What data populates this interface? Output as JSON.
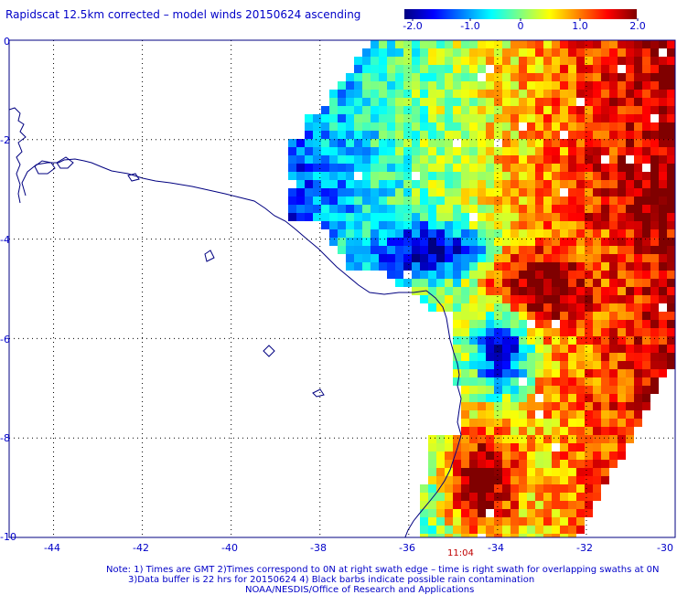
{
  "title": "Rapidscat 12.5km corrected – model winds 20150624 ascending",
  "colorbar": {
    "ticks": [
      "-2.0",
      "-1.0",
      "0",
      "1.0",
      "2.0"
    ],
    "colors": [
      "#000080",
      "#0000ff",
      "#0080ff",
      "#00ffff",
      "#80ff80",
      "#ffff00",
      "#ff8000",
      "#ff0000",
      "#800000"
    ]
  },
  "map": {
    "lon_range": [
      -45,
      -30
    ],
    "lat_range": [
      -10,
      0
    ],
    "x_ticks": [
      "-44",
      "-42",
      "-40",
      "-38",
      "-36",
      "-34",
      "-32",
      "-30"
    ],
    "y_ticks": [
      "0",
      "-2",
      "-4",
      "-6",
      "-8",
      "-10"
    ],
    "grid": "dotted",
    "coastline_color": "#000080",
    "land_fill": "#ffffff"
  },
  "swath_time": "11:04",
  "notes": [
    "Note: 1) Times are GMT 2)Times correspond to 0N at right swath edge – time is right swath for overlapping swaths at 0N",
    "3)Data buffer is 22 hrs for 20150624 4) Black barbs indicate possible rain contamination",
    "NOAA/NESDIS/Office of Research and Applications"
  ]
}
